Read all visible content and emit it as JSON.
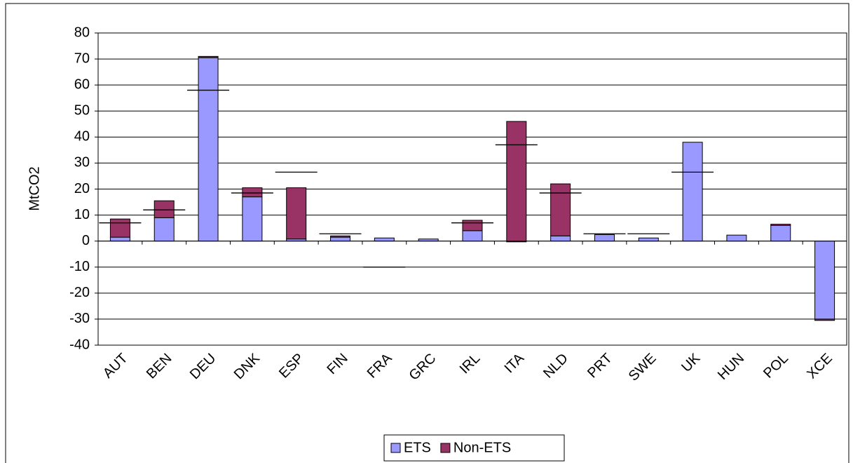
{
  "chart_data": {
    "type": "stacked_bar",
    "y_label": "MtCO2",
    "categories": [
      "AUT",
      "BEN",
      "DEU",
      "DNK",
      "ESP",
      "FIN",
      "FRA",
      "GRC",
      "IRL",
      "ITA",
      "NLD",
      "PRT",
      "SWE",
      "UK",
      "HUN",
      "POL",
      "XCE"
    ],
    "series": [
      {
        "name": "ETS",
        "color": "#9999ff",
        "values": [
          1.5,
          9,
          70.5,
          17,
          0.8,
          1.5,
          1.2,
          0.8,
          4,
          -0.3,
          2,
          2.5,
          1.2,
          38,
          2.3,
          6,
          -30
        ]
      },
      {
        "name": "Non-ETS",
        "color": "#993366",
        "values": [
          7,
          6.5,
          0.5,
          3.5,
          19.7,
          0.5,
          0,
          0,
          4,
          46,
          20,
          0,
          0,
          0,
          0,
          0.5,
          -0.5
        ]
      }
    ],
    "line_markers": {
      "color": "#000000",
      "values": [
        7,
        12,
        58,
        18.5,
        26.5,
        2.8,
        -10,
        null,
        7,
        37,
        18.5,
        2.8,
        2.8,
        26.5,
        null,
        null,
        null
      ]
    },
    "ylim": [
      -40,
      80
    ],
    "yticks": [
      -40,
      -30,
      -20,
      -10,
      0,
      10,
      20,
      30,
      40,
      50,
      60,
      70,
      80
    ],
    "grid": true,
    "legend": "bottom"
  }
}
